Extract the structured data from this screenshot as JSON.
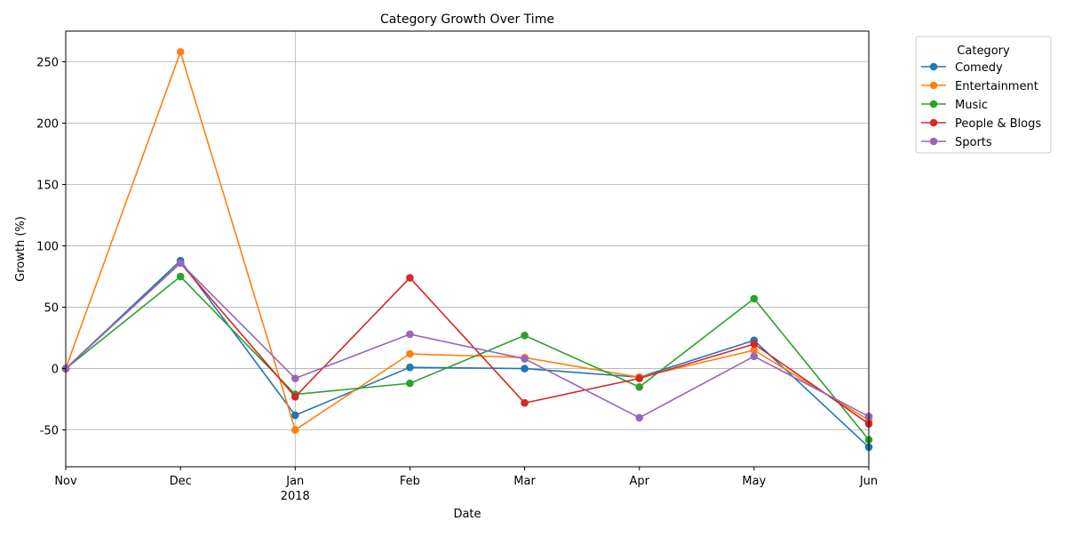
{
  "chart_data": {
    "type": "line",
    "title": "Category Growth Over Time",
    "xlabel": "Date",
    "ylabel": "Growth (%)",
    "x": [
      "2017-11",
      "2017-12",
      "2018-01",
      "2018-02",
      "2018-03",
      "2018-04",
      "2018-05",
      "2018-06"
    ],
    "x_tick_labels": [
      "Nov",
      "Dec",
      "Jan",
      "Feb",
      "Mar",
      "Apr",
      "May",
      "Jun"
    ],
    "x_year_label": "2018",
    "y_ticks": [
      -50,
      0,
      50,
      100,
      150,
      200,
      250
    ],
    "ylim": [
      -80,
      275
    ],
    "grid": true,
    "legend": {
      "title": "Category",
      "placement": "outside-top-right"
    },
    "series": [
      {
        "name": "Comedy",
        "color": "#1f77b4",
        "values": [
          0,
          88,
          -38,
          1,
          0,
          -7,
          23,
          -64
        ]
      },
      {
        "name": "Entertainment",
        "color": "#ff7f0e",
        "values": [
          0,
          258,
          -50,
          12,
          9,
          -7,
          15,
          -42
        ]
      },
      {
        "name": "Music",
        "color": "#2ca02c",
        "values": [
          0,
          75,
          -21,
          -12,
          27,
          -15,
          57,
          -58
        ]
      },
      {
        "name": "People & Blogs",
        "color": "#d62728",
        "values": [
          0,
          86,
          -23,
          74,
          -28,
          -8,
          20,
          -45
        ]
      },
      {
        "name": "Sports",
        "color": "#9467bd",
        "values": [
          0,
          86,
          -8,
          28,
          8,
          -40,
          10,
          -39
        ]
      }
    ]
  }
}
